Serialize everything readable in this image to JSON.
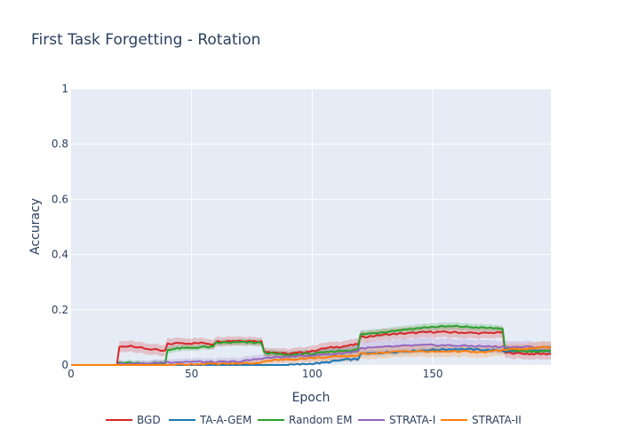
{
  "chart_data": {
    "type": "line",
    "title": "First Task Forgetting - Rotation",
    "xlabel": "Epoch",
    "ylabel": "Accuracy",
    "xlim": [
      0,
      199
    ],
    "ylim": [
      0,
      1
    ],
    "xticks": [
      0,
      50,
      100,
      150
    ],
    "yticks": [
      0,
      0.2,
      0.4,
      0.6,
      0.8,
      1
    ],
    "ytick_labels": [
      "0",
      "0.2",
      "0.4",
      "0.6",
      "0.8",
      "1"
    ],
    "grid": true,
    "legend_position": "bottom",
    "series": [
      {
        "name": "BGD",
        "color": "#d62728",
        "band_opacity": 0.22,
        "points": [
          [
            0,
            0
          ],
          [
            19,
            0
          ],
          [
            20,
            0.065
          ],
          [
            25,
            0.07
          ],
          [
            30,
            0.06
          ],
          [
            35,
            0.055
          ],
          [
            38,
            0.05
          ],
          [
            39,
            0.052
          ],
          [
            40,
            0.075
          ],
          [
            45,
            0.08
          ],
          [
            50,
            0.078
          ],
          [
            55,
            0.08
          ],
          [
            59,
            0.075
          ],
          [
            60,
            0.085
          ],
          [
            65,
            0.087
          ],
          [
            70,
            0.088
          ],
          [
            75,
            0.087
          ],
          [
            79,
            0.085
          ],
          [
            80,
            0.05
          ],
          [
            85,
            0.045
          ],
          [
            90,
            0.04
          ],
          [
            95,
            0.045
          ],
          [
            100,
            0.05
          ],
          [
            105,
            0.06
          ],
          [
            110,
            0.065
          ],
          [
            115,
            0.07
          ],
          [
            119,
            0.075
          ],
          [
            120,
            0.1
          ],
          [
            130,
            0.11
          ],
          [
            140,
            0.115
          ],
          [
            150,
            0.12
          ],
          [
            160,
            0.118
          ],
          [
            170,
            0.115
          ],
          [
            179,
            0.118
          ],
          [
            180,
            0.045
          ],
          [
            190,
            0.04
          ],
          [
            199,
            0.04
          ]
        ],
        "band": [
          [
            0,
            0
          ],
          [
            19,
            0
          ],
          [
            20,
            0.02
          ],
          [
            40,
            0.02
          ],
          [
            80,
            0.015
          ],
          [
            100,
            0.02
          ],
          [
            120,
            0.02
          ],
          [
            180,
            0.02
          ],
          [
            199,
            0.02
          ]
        ]
      },
      {
        "name": "TA-A-GEM",
        "color": "#1f77b4",
        "band_opacity": 0.15,
        "points": [
          [
            0,
            0
          ],
          [
            90,
            0
          ],
          [
            95,
            0.002
          ],
          [
            100,
            0.005
          ],
          [
            105,
            0.008
          ],
          [
            110,
            0.015
          ],
          [
            115,
            0.02
          ],
          [
            119,
            0.02
          ],
          [
            120,
            0.04
          ],
          [
            130,
            0.045
          ],
          [
            140,
            0.05
          ],
          [
            150,
            0.055
          ],
          [
            160,
            0.058
          ],
          [
            170,
            0.055
          ],
          [
            179,
            0.052
          ],
          [
            180,
            0.05
          ],
          [
            190,
            0.05
          ],
          [
            199,
            0.05
          ]
        ],
        "band": [
          [
            0,
            0
          ],
          [
            90,
            0
          ],
          [
            100,
            0.005
          ],
          [
            120,
            0.01
          ],
          [
            199,
            0.01
          ]
        ]
      },
      {
        "name": "Random EM",
        "color": "#2ca02c",
        "band_opacity": 0.22,
        "points": [
          [
            0,
            0
          ],
          [
            19,
            0
          ],
          [
            20,
            0.01
          ],
          [
            30,
            0.005
          ],
          [
            39,
            0.005
          ],
          [
            40,
            0.055
          ],
          [
            45,
            0.06
          ],
          [
            50,
            0.062
          ],
          [
            55,
            0.065
          ],
          [
            59,
            0.065
          ],
          [
            60,
            0.08
          ],
          [
            70,
            0.082
          ],
          [
            79,
            0.08
          ],
          [
            80,
            0.045
          ],
          [
            85,
            0.04
          ],
          [
            90,
            0.035
          ],
          [
            95,
            0.04
          ],
          [
            100,
            0.04
          ],
          [
            110,
            0.05
          ],
          [
            119,
            0.055
          ],
          [
            120,
            0.11
          ],
          [
            130,
            0.12
          ],
          [
            140,
            0.13
          ],
          [
            150,
            0.138
          ],
          [
            160,
            0.14
          ],
          [
            170,
            0.135
          ],
          [
            179,
            0.132
          ],
          [
            180,
            0.055
          ],
          [
            190,
            0.05
          ],
          [
            199,
            0.05
          ]
        ],
        "band": [
          [
            0,
            0
          ],
          [
            19,
            0
          ],
          [
            20,
            0.008
          ],
          [
            40,
            0.012
          ],
          [
            60,
            0.01
          ],
          [
            80,
            0.012
          ],
          [
            120,
            0.015
          ],
          [
            180,
            0.012
          ],
          [
            199,
            0.012
          ]
        ]
      },
      {
        "name": "STRATA-I",
        "color": "#9467bd",
        "band_opacity": 0.22,
        "points": [
          [
            0,
            0
          ],
          [
            19,
            0
          ],
          [
            20,
            0.005
          ],
          [
            30,
            0.004
          ],
          [
            40,
            0.01
          ],
          [
            50,
            0.012
          ],
          [
            60,
            0.01
          ],
          [
            70,
            0.012
          ],
          [
            80,
            0.025
          ],
          [
            90,
            0.03
          ],
          [
            100,
            0.035
          ],
          [
            110,
            0.04
          ],
          [
            119,
            0.05
          ],
          [
            120,
            0.06
          ],
          [
            130,
            0.065
          ],
          [
            140,
            0.07
          ],
          [
            150,
            0.072
          ],
          [
            160,
            0.07
          ],
          [
            170,
            0.068
          ],
          [
            180,
            0.065
          ],
          [
            190,
            0.065
          ],
          [
            199,
            0.065
          ]
        ],
        "band": [
          [
            0,
            0
          ],
          [
            19,
            0
          ],
          [
            20,
            0.01
          ],
          [
            80,
            0.015
          ],
          [
            120,
            0.022
          ],
          [
            150,
            0.025
          ],
          [
            199,
            0.02
          ]
        ]
      },
      {
        "name": "STRATA-II",
        "color": "#ff7f0e",
        "band_opacity": 0.22,
        "points": [
          [
            0,
            0
          ],
          [
            40,
            0
          ],
          [
            50,
            0.003
          ],
          [
            60,
            0.004
          ],
          [
            70,
            0.005
          ],
          [
            79,
            0.008
          ],
          [
            80,
            0.015
          ],
          [
            90,
            0.02
          ],
          [
            100,
            0.025
          ],
          [
            110,
            0.03
          ],
          [
            119,
            0.035
          ],
          [
            120,
            0.04
          ],
          [
            130,
            0.045
          ],
          [
            140,
            0.05
          ],
          [
            150,
            0.048
          ],
          [
            160,
            0.05
          ],
          [
            170,
            0.045
          ],
          [
            180,
            0.055
          ],
          [
            190,
            0.06
          ],
          [
            199,
            0.065
          ]
        ],
        "band": [
          [
            0,
            0
          ],
          [
            40,
            0
          ],
          [
            60,
            0.008
          ],
          [
            80,
            0.012
          ],
          [
            120,
            0.02
          ],
          [
            199,
            0.02
          ]
        ]
      }
    ]
  }
}
